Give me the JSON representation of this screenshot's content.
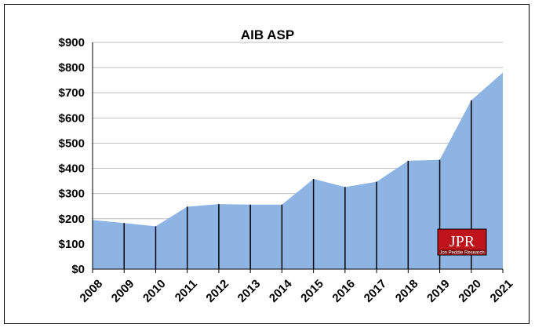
{
  "chart_data": {
    "type": "area",
    "title": "AIB ASP",
    "xlabel": "",
    "ylabel": "",
    "x": [
      "2008",
      "2009",
      "2010",
      "2011",
      "2012",
      "2013",
      "2014",
      "2015",
      "2016",
      "2017",
      "2018",
      "2019",
      "2020",
      "2021"
    ],
    "values": [
      195,
      183,
      170,
      248,
      258,
      256,
      256,
      358,
      326,
      347,
      430,
      434,
      670,
      780
    ],
    "ylim": [
      0,
      900
    ],
    "ytick_values": [
      0,
      100,
      200,
      300,
      400,
      500,
      600,
      700,
      800,
      900
    ],
    "ytick_labels": [
      "$0",
      "$100",
      "$200",
      "$300",
      "$400",
      "$500",
      "$600",
      "$700",
      "$800",
      "$900"
    ],
    "grid": true,
    "fill_color": "#8eb4e3",
    "drop_line_color": "#000000"
  },
  "logo": {
    "text": "JPR",
    "subtext": "Jon Peddie Research",
    "color": "#c0141c"
  }
}
